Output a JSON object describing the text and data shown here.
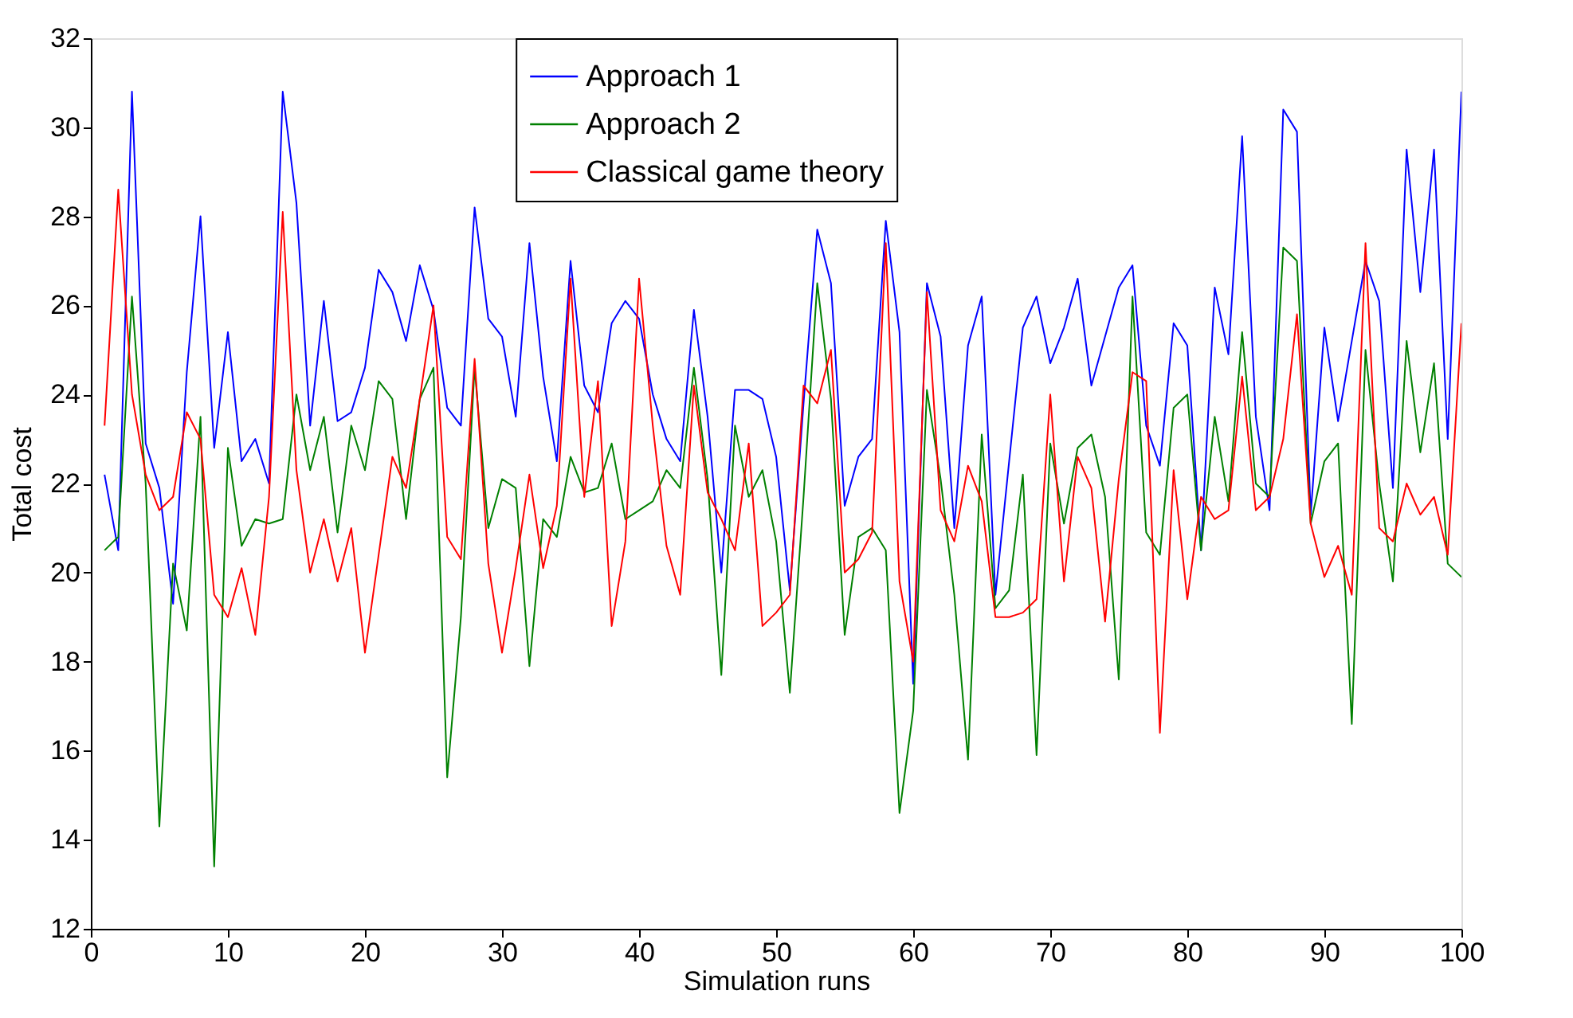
{
  "chart_data": {
    "type": "line",
    "xlabel": "Simulation runs",
    "ylabel": "Total cost",
    "x": [
      1,
      2,
      3,
      4,
      5,
      6,
      7,
      8,
      9,
      10,
      11,
      12,
      13,
      14,
      15,
      16,
      17,
      18,
      19,
      20,
      21,
      22,
      23,
      24,
      25,
      26,
      27,
      28,
      29,
      30,
      31,
      32,
      33,
      34,
      35,
      36,
      37,
      38,
      39,
      40,
      41,
      42,
      43,
      44,
      45,
      46,
      47,
      48,
      49,
      50,
      51,
      52,
      53,
      54,
      55,
      56,
      57,
      58,
      59,
      60,
      61,
      62,
      63,
      64,
      65,
      66,
      67,
      68,
      69,
      70,
      71,
      72,
      73,
      74,
      75,
      76,
      77,
      78,
      79,
      80,
      81,
      82,
      83,
      84,
      85,
      86,
      87,
      88,
      89,
      90,
      91,
      92,
      93,
      94,
      95,
      96,
      97,
      98,
      99,
      100
    ],
    "xlim": [
      0,
      100
    ],
    "xticks": [
      0,
      10,
      20,
      30,
      40,
      50,
      60,
      70,
      80,
      90,
      100
    ],
    "ylim": [
      12,
      32
    ],
    "yticks": [
      12,
      14,
      16,
      18,
      20,
      22,
      24,
      26,
      28,
      30,
      32
    ],
    "grid": false,
    "legend": "top",
    "marker": "none",
    "line_style": "solid",
    "series": [
      {
        "name": "Approach 1",
        "color": "#0000ff",
        "values": [
          22.2,
          20.5,
          30.8,
          22.9,
          21.9,
          19.3,
          24.5,
          28.0,
          22.8,
          25.4,
          22.5,
          23.0,
          22.0,
          30.8,
          28.3,
          23.3,
          26.1,
          23.4,
          23.6,
          24.6,
          26.8,
          26.3,
          25.2,
          26.9,
          25.9,
          23.7,
          23.3,
          28.2,
          25.7,
          25.3,
          23.5,
          27.4,
          24.4,
          22.5,
          27.0,
          24.2,
          23.6,
          25.6,
          26.1,
          25.7,
          24.0,
          23.0,
          22.5,
          25.9,
          23.5,
          20.0,
          24.1,
          24.1,
          23.9,
          22.6,
          19.6,
          23.8,
          27.7,
          26.5,
          21.5,
          22.6,
          23.0,
          27.9,
          25.4,
          17.5,
          26.5,
          25.3,
          21.0,
          25.1,
          26.2,
          19.5,
          22.5,
          25.5,
          26.2,
          24.7,
          25.5,
          26.6,
          24.2,
          25.3,
          26.4,
          26.9,
          23.3,
          22.4,
          25.6,
          25.1,
          20.5,
          26.4,
          24.9,
          29.8,
          23.5,
          21.4,
          30.4,
          29.9,
          21.3,
          25.5,
          23.4,
          25.2,
          27.0,
          26.1,
          21.9,
          29.5,
          26.3,
          29.5,
          23.0,
          30.8
        ]
      },
      {
        "name": "Approach 2",
        "color": "#008000",
        "values": [
          20.5,
          20.8,
          26.2,
          22.0,
          14.3,
          20.2,
          18.7,
          23.5,
          13.4,
          22.8,
          20.6,
          21.2,
          21.1,
          21.2,
          24.0,
          22.3,
          23.5,
          20.9,
          23.3,
          22.3,
          24.3,
          23.9,
          21.2,
          23.9,
          24.6,
          15.4,
          19.0,
          24.6,
          21.0,
          22.1,
          21.9,
          17.9,
          21.2,
          20.8,
          22.6,
          21.8,
          21.9,
          22.9,
          21.2,
          21.4,
          21.6,
          22.3,
          21.9,
          24.6,
          22.1,
          17.7,
          23.3,
          21.7,
          22.3,
          20.7,
          17.3,
          21.7,
          26.5,
          23.9,
          18.6,
          20.8,
          21.0,
          20.5,
          14.6,
          16.9,
          24.1,
          22.1,
          19.5,
          15.8,
          23.1,
          19.2,
          19.6,
          22.2,
          15.9,
          22.9,
          21.1,
          22.8,
          23.1,
          21.7,
          17.6,
          26.2,
          20.9,
          20.4,
          23.7,
          24.0,
          20.5,
          23.5,
          21.6,
          25.4,
          22.0,
          21.7,
          27.3,
          27.0,
          21.1,
          22.5,
          22.9,
          16.6,
          25.0,
          22.0,
          19.8,
          25.2,
          22.7,
          24.7,
          20.2,
          19.9
        ]
      },
      {
        "name": "Classical game theory",
        "color": "#ff0000",
        "values": [
          23.3,
          28.6,
          24.0,
          22.2,
          21.4,
          21.7,
          23.6,
          23.0,
          19.5,
          19.0,
          20.1,
          18.6,
          21.7,
          28.1,
          22.3,
          20.0,
          21.2,
          19.8,
          21.0,
          18.2,
          20.4,
          22.6,
          21.9,
          23.9,
          26.0,
          20.8,
          20.3,
          24.8,
          20.2,
          18.2,
          20.1,
          22.2,
          20.1,
          21.5,
          26.6,
          21.7,
          24.3,
          18.8,
          20.7,
          26.6,
          23.3,
          20.6,
          19.5,
          24.2,
          21.8,
          21.2,
          20.5,
          22.9,
          18.8,
          19.1,
          19.5,
          24.2,
          23.8,
          25.0,
          20.0,
          20.3,
          20.9,
          27.4,
          19.8,
          18.0,
          26.3,
          21.4,
          20.7,
          22.4,
          21.6,
          19.0,
          19.0,
          19.1,
          19.4,
          24.0,
          19.8,
          22.6,
          21.9,
          18.9,
          22.1,
          24.5,
          24.3,
          16.4,
          22.3,
          19.4,
          21.7,
          21.2,
          21.4,
          24.4,
          21.4,
          21.7,
          23.0,
          25.8,
          21.1,
          19.9,
          20.6,
          19.5,
          27.4,
          21.0,
          20.7,
          22.0,
          21.3,
          21.7,
          20.4,
          25.6
        ]
      }
    ]
  }
}
